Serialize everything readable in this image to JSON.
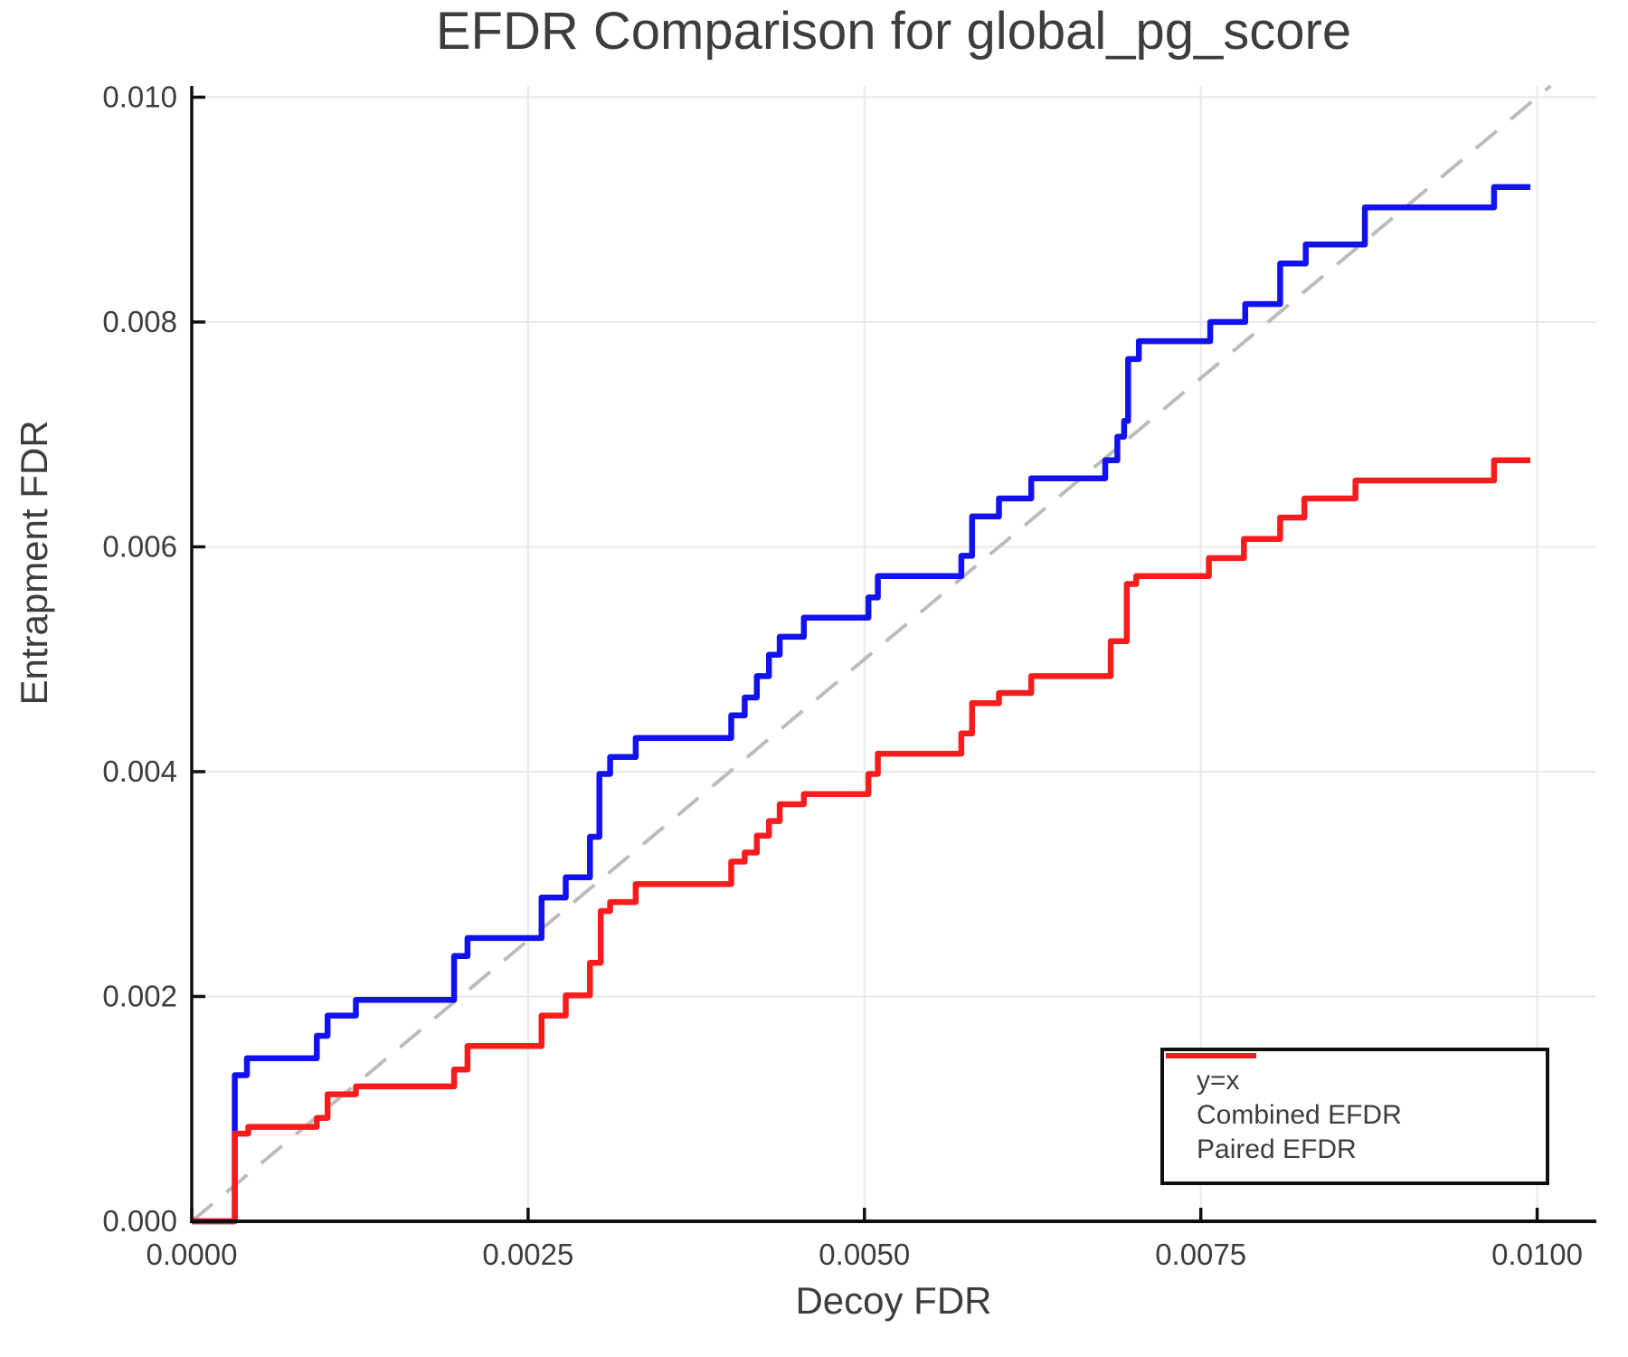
{
  "title": "EFDR Comparison for global_pg_score",
  "axes": {
    "x": {
      "label": "Decoy FDR",
      "tick_labels": [
        "0.0000",
        "0.0025",
        "0.0050",
        "0.0075",
        "0.0100"
      ],
      "tick_values": [
        0,
        0.0025,
        0.005,
        0.0075,
        0.01
      ]
    },
    "y": {
      "label": "Entrapment FDR",
      "tick_labels": [
        "0.000",
        "0.002",
        "0.004",
        "0.006",
        "0.008",
        "0.010"
      ],
      "tick_values": [
        0,
        0.002,
        0.004,
        0.006,
        0.008,
        0.01
      ]
    }
  },
  "legend": {
    "items": [
      {
        "label": "y=x",
        "style": "dashed",
        "color": "#bcbcbc"
      },
      {
        "label": "Combined EFDR",
        "style": "solid",
        "color": "#1212ee"
      },
      {
        "label": "Paired EFDR",
        "style": "solid",
        "color": "#f81c1c"
      }
    ]
  },
  "colors": {
    "background": "#ffffff",
    "grid": "#e8e8e8",
    "spine": "#0f0f0f",
    "text": "#3d3d3d",
    "diagonal": "#bcbcbc",
    "combined": "#1212ee",
    "paired": "#f81c1c"
  },
  "chart_data": {
    "type": "line",
    "title": "EFDR Comparison for global_pg_score",
    "xlabel": "Decoy FDR",
    "ylabel": "Entrapment FDR",
    "xlim": [
      0,
      0.01044
    ],
    "ylim": [
      0,
      0.0101
    ],
    "grid": true,
    "legend_position": "lower right",
    "diagonal": {
      "label": "y=x",
      "from": [
        0,
        0
      ],
      "to": [
        0.0101,
        0.0101
      ],
      "color": "#bcbcbc",
      "dashed": true
    },
    "series": [
      {
        "name": "Combined EFDR",
        "color": "#1212ee",
        "step": "post",
        "points": [
          [
            0.0,
            0.0
          ],
          [
            0.00032,
            0.0013
          ],
          [
            0.00041,
            0.00145
          ],
          [
            0.00093,
            0.00165
          ],
          [
            0.00101,
            0.00183
          ],
          [
            0.00122,
            0.00197
          ],
          [
            0.00195,
            0.00236
          ],
          [
            0.00205,
            0.00252
          ],
          [
            0.0026,
            0.00288
          ],
          [
            0.00278,
            0.00306
          ],
          [
            0.00296,
            0.00342
          ],
          [
            0.00303,
            0.00398
          ],
          [
            0.00311,
            0.00413
          ],
          [
            0.0033,
            0.0043
          ],
          [
            0.00401,
            0.0045
          ],
          [
            0.00411,
            0.00466
          ],
          [
            0.0042,
            0.00485
          ],
          [
            0.00429,
            0.00504
          ],
          [
            0.00437,
            0.0052
          ],
          [
            0.00455,
            0.00537
          ],
          [
            0.00503,
            0.00555
          ],
          [
            0.0051,
            0.00574
          ],
          [
            0.00572,
            0.00592
          ],
          [
            0.0058,
            0.00627
          ],
          [
            0.006,
            0.00643
          ],
          [
            0.00624,
            0.00661
          ],
          [
            0.00679,
            0.00677
          ],
          [
            0.00688,
            0.00698
          ],
          [
            0.00693,
            0.00712
          ],
          [
            0.00696,
            0.00767
          ],
          [
            0.00704,
            0.00783
          ],
          [
            0.00757,
            0.008
          ],
          [
            0.00783,
            0.00816
          ],
          [
            0.00809,
            0.00852
          ],
          [
            0.00828,
            0.00869
          ],
          [
            0.00872,
            0.00902
          ],
          [
            0.00968,
            0.0092
          ],
          [
            0.00995,
            0.0092
          ]
        ]
      },
      {
        "name": "Paired EFDR",
        "color": "#f81c1c",
        "step": "post",
        "points": [
          [
            0.0,
            0.0
          ],
          [
            0.00032,
            0.00078
          ],
          [
            0.00042,
            0.00084
          ],
          [
            0.00093,
            0.00092
          ],
          [
            0.00101,
            0.00113
          ],
          [
            0.00122,
            0.0012
          ],
          [
            0.00195,
            0.00135
          ],
          [
            0.00205,
            0.00156
          ],
          [
            0.0026,
            0.00183
          ],
          [
            0.00278,
            0.00201
          ],
          [
            0.00296,
            0.0023
          ],
          [
            0.00304,
            0.00276
          ],
          [
            0.00311,
            0.00284
          ],
          [
            0.0033,
            0.003
          ],
          [
            0.00401,
            0.0032
          ],
          [
            0.00411,
            0.00328
          ],
          [
            0.0042,
            0.00343
          ],
          [
            0.00429,
            0.00356
          ],
          [
            0.00437,
            0.00371
          ],
          [
            0.00455,
            0.0038
          ],
          [
            0.00503,
            0.00398
          ],
          [
            0.0051,
            0.00416
          ],
          [
            0.00572,
            0.00434
          ],
          [
            0.0058,
            0.00461
          ],
          [
            0.006,
            0.0047
          ],
          [
            0.00624,
            0.00485
          ],
          [
            0.00683,
            0.00516
          ],
          [
            0.00695,
            0.00567
          ],
          [
            0.00702,
            0.00574
          ],
          [
            0.00756,
            0.0059
          ],
          [
            0.00782,
            0.00607
          ],
          [
            0.00809,
            0.00626
          ],
          [
            0.00827,
            0.00643
          ],
          [
            0.00865,
            0.00659
          ],
          [
            0.00968,
            0.00677
          ],
          [
            0.00995,
            0.00677
          ]
        ]
      }
    ]
  }
}
